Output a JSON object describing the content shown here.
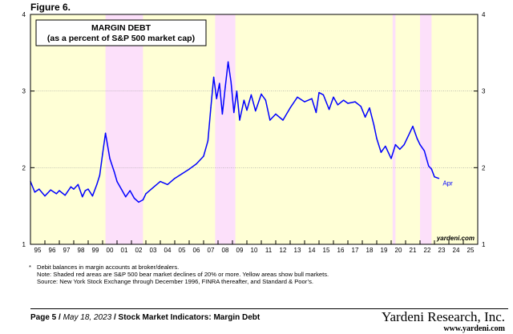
{
  "figure_label": "Figure 6.",
  "chart_data": {
    "type": "line",
    "title": "MARGIN DEBT",
    "subtitle": "(as a percent of S&P 500 market cap)",
    "ylim": [
      1,
      4
    ],
    "y_ticks": [
      "1",
      "2",
      "3",
      "4"
    ],
    "x_ticks": [
      "95",
      "96",
      "97",
      "98",
      "99",
      "00",
      "01",
      "02",
      "03",
      "04",
      "05",
      "06",
      "07",
      "08",
      "09",
      "10",
      "11",
      "12",
      "13",
      "14",
      "15",
      "16",
      "17",
      "18",
      "19",
      "20",
      "21",
      "22",
      "23",
      "24",
      "25"
    ],
    "x_range": [
      1995,
      2026
    ],
    "end_label": "Apr",
    "watermark": "yardeni.com",
    "bear_markets": [
      [
        2000.2,
        2002.8
      ],
      [
        2007.8,
        2009.2
      ],
      [
        2020.1,
        2020.3
      ],
      [
        2022.0,
        2022.8
      ]
    ],
    "series": [
      {
        "name": "Margin Debt % of S&P 500 market cap",
        "color": "#0000ff",
        "points": [
          [
            1995.0,
            1.82
          ],
          [
            1995.3,
            1.68
          ],
          [
            1995.6,
            1.72
          ],
          [
            1996.0,
            1.63
          ],
          [
            1996.4,
            1.71
          ],
          [
            1996.8,
            1.66
          ],
          [
            1997.0,
            1.7
          ],
          [
            1997.4,
            1.64
          ],
          [
            1997.8,
            1.75
          ],
          [
            1998.0,
            1.72
          ],
          [
            1998.3,
            1.78
          ],
          [
            1998.6,
            1.62
          ],
          [
            1998.8,
            1.7
          ],
          [
            1999.0,
            1.72
          ],
          [
            1999.3,
            1.63
          ],
          [
            1999.6,
            1.78
          ],
          [
            1999.8,
            1.9
          ],
          [
            2000.0,
            2.18
          ],
          [
            2000.2,
            2.45
          ],
          [
            2000.5,
            2.12
          ],
          [
            2000.8,
            1.95
          ],
          [
            2001.0,
            1.82
          ],
          [
            2001.3,
            1.72
          ],
          [
            2001.6,
            1.62
          ],
          [
            2001.9,
            1.7
          ],
          [
            2002.2,
            1.6
          ],
          [
            2002.5,
            1.55
          ],
          [
            2002.8,
            1.58
          ],
          [
            2003.0,
            1.66
          ],
          [
            2003.5,
            1.74
          ],
          [
            2004.0,
            1.82
          ],
          [
            2004.5,
            1.78
          ],
          [
            2005.0,
            1.86
          ],
          [
            2005.5,
            1.92
          ],
          [
            2006.0,
            1.98
          ],
          [
            2006.5,
            2.05
          ],
          [
            2007.0,
            2.15
          ],
          [
            2007.3,
            2.35
          ],
          [
            2007.5,
            2.78
          ],
          [
            2007.7,
            3.18
          ],
          [
            2007.9,
            2.9
          ],
          [
            2008.1,
            3.1
          ],
          [
            2008.3,
            2.7
          ],
          [
            2008.5,
            3.05
          ],
          [
            2008.7,
            3.38
          ],
          [
            2008.9,
            3.12
          ],
          [
            2009.1,
            2.72
          ],
          [
            2009.3,
            3.0
          ],
          [
            2009.5,
            2.62
          ],
          [
            2009.8,
            2.88
          ],
          [
            2010.0,
            2.75
          ],
          [
            2010.3,
            2.95
          ],
          [
            2010.6,
            2.74
          ],
          [
            2011.0,
            2.96
          ],
          [
            2011.3,
            2.88
          ],
          [
            2011.6,
            2.62
          ],
          [
            2012.0,
            2.7
          ],
          [
            2012.5,
            2.62
          ],
          [
            2013.0,
            2.78
          ],
          [
            2013.5,
            2.92
          ],
          [
            2014.0,
            2.86
          ],
          [
            2014.5,
            2.9
          ],
          [
            2014.8,
            2.72
          ],
          [
            2015.0,
            2.98
          ],
          [
            2015.3,
            2.95
          ],
          [
            2015.7,
            2.76
          ],
          [
            2016.0,
            2.92
          ],
          [
            2016.3,
            2.82
          ],
          [
            2016.7,
            2.88
          ],
          [
            2017.0,
            2.84
          ],
          [
            2017.5,
            2.86
          ],
          [
            2017.9,
            2.8
          ],
          [
            2018.2,
            2.66
          ],
          [
            2018.5,
            2.78
          ],
          [
            2018.8,
            2.56
          ],
          [
            2019.0,
            2.38
          ],
          [
            2019.3,
            2.2
          ],
          [
            2019.6,
            2.28
          ],
          [
            2020.0,
            2.12
          ],
          [
            2020.3,
            2.3
          ],
          [
            2020.6,
            2.24
          ],
          [
            2020.9,
            2.3
          ],
          [
            2021.2,
            2.42
          ],
          [
            2021.5,
            2.54
          ],
          [
            2021.8,
            2.38
          ],
          [
            2022.0,
            2.3
          ],
          [
            2022.3,
            2.22
          ],
          [
            2022.6,
            2.02
          ],
          [
            2022.8,
            1.98
          ],
          [
            2023.0,
            1.88
          ],
          [
            2023.3,
            1.86
          ]
        ]
      }
    ]
  },
  "notes": {
    "star": "*",
    "line1": "Debit balances in margin accounts at broker/dealers.",
    "line2": "Note: Shaded red areas are S&P 500 bear market declines of 20% or more. Yellow areas show bull markets.",
    "line3": "Source: New York Stock Exchange through December 1996, FINRA thereafter, and Standard & Poor’s."
  },
  "footer": {
    "page": "Page 5 /",
    "date": "May 18, 2023",
    "section": "/  Stock Market Indicators: Margin Debt"
  },
  "brand": {
    "name": "Yardeni Research, Inc.",
    "url": "www.yardeni.com"
  },
  "colors": {
    "bull": "#ffffd6",
    "bear": "#fce0fa",
    "line": "#0000ff"
  }
}
